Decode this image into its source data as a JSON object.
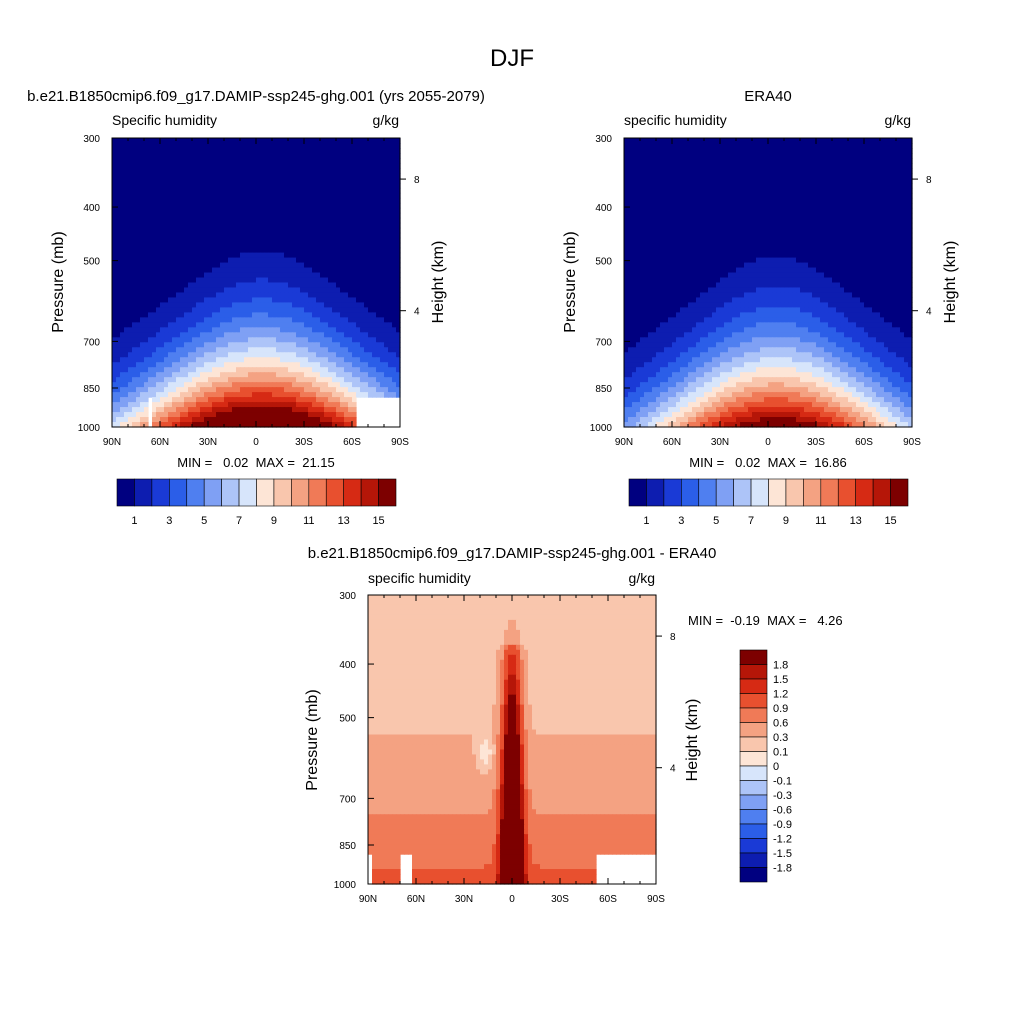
{
  "main_title": "DJF",
  "chart_data": [
    {
      "type": "heatmap",
      "title": "b.e21.B1850cmip6.f09_g17.DAMIP-ssp245-ghg.001 (yrs 2055-2079)",
      "left_label": "Specific humidity",
      "right_label": "g/kg",
      "ylabel": "Pressure (mb)",
      "ylabel_right": "Height (km)",
      "stats_text": "MIN =   0.02  MAX =  21.15",
      "min": 0.02,
      "max": 21.15,
      "peak": 18.5,
      "width_p": 0.42,
      "peak_shift": 0.02,
      "surface_cut": "both",
      "xticks": [
        "90N",
        "60N",
        "30N",
        "0",
        "30S",
        "60S",
        "90S"
      ],
      "yticks": [
        "300",
        "400",
        "500",
        "700",
        "850",
        "1000"
      ],
      "y2ticks": [
        "8",
        "4"
      ],
      "cbar_labels": [
        "1",
        "3",
        "5",
        "7",
        "9",
        "11",
        "13",
        "15"
      ]
    },
    {
      "type": "heatmap",
      "title": "ERA40",
      "left_label": "specific humidity",
      "right_label": "g/kg",
      "ylabel": "Pressure (mb)",
      "ylabel_right": "Height (km)",
      "stats_text": "MIN =   0.02  MAX =  16.86",
      "min": 0.02,
      "max": 16.86,
      "peak": 16.0,
      "width_p": 0.38,
      "peak_shift": 0.03,
      "surface_cut": "none",
      "xticks": [
        "90N",
        "60N",
        "30N",
        "0",
        "30S",
        "60S",
        "90S"
      ],
      "yticks": [
        "300",
        "400",
        "500",
        "700",
        "850",
        "1000"
      ],
      "y2ticks": [
        "8",
        "4"
      ],
      "cbar_labels": [
        "1",
        "3",
        "5",
        "7",
        "9",
        "11",
        "13",
        "15"
      ]
    },
    {
      "type": "heatmap",
      "title": "b.e21.B1850cmip6.f09_g17.DAMIP-ssp245-ghg.001 - ERA40",
      "left_label": "specific humidity",
      "right_label": "g/kg",
      "ylabel": "Pressure (mb)",
      "ylabel_right": "Height (km)",
      "stats_text": "MIN =  -0.19  MAX =   4.26",
      "min": -0.19,
      "max": 4.26,
      "xticks": [
        "90N",
        "60N",
        "30N",
        "0",
        "30S",
        "60S",
        "90S"
      ],
      "yticks": [
        "300",
        "400",
        "500",
        "700",
        "850",
        "1000"
      ],
      "y2ticks": [
        "8",
        "4"
      ],
      "cbar_labels": [
        "1.8",
        "1.5",
        "1.2",
        "0.9",
        "0.6",
        "0.3",
        "0.1",
        "0",
        "-0.1",
        "-0.3",
        "-0.6",
        "-0.9",
        "-1.2",
        "-1.5",
        "-1.8"
      ]
    }
  ],
  "palette": [
    "#000080",
    "#0d1db0",
    "#1a3ad6",
    "#2b5ee8",
    "#4f7ff0",
    "#7fa0f4",
    "#adc4f8",
    "#d7e5fb",
    "#fde5d6",
    "#f9c6ad",
    "#f4a282",
    "#f07a57",
    "#e8502f",
    "#d62a14",
    "#b51608",
    "#7d0000"
  ],
  "diff_palette": [
    "#000080",
    "#0d1db0",
    "#1a3ad6",
    "#2b5ee8",
    "#4f7ff0",
    "#7fa0f4",
    "#adc4f8",
    "#d7e5fb",
    "#fde5d6",
    "#f9c6ad",
    "#f4a282",
    "#f07a57",
    "#e8502f",
    "#d62a14",
    "#b51608",
    "#7d0000"
  ]
}
